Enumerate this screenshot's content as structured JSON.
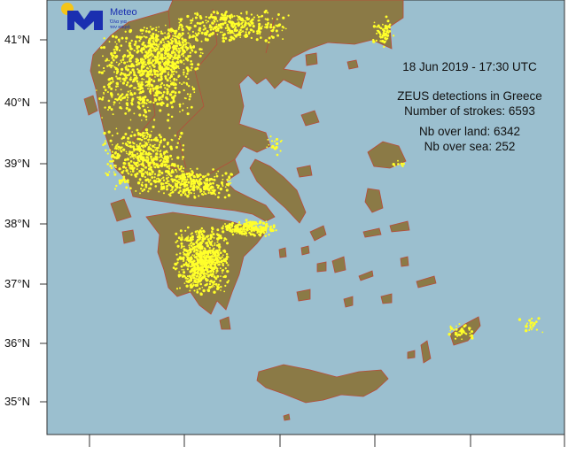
{
  "map": {
    "background_sea": "#9bbfcf",
    "land": "#8b7a46",
    "border": "#c04040",
    "strike_color": "#ffff2a",
    "lat_labels": [
      "41°N",
      "40°N",
      "39°N",
      "38°N",
      "37°N",
      "36°N",
      "35°N"
    ]
  },
  "logo": {
    "name": "Meteo",
    "tagline_1": "Όλα για",
    "tagline_2": "τον καιρό",
    "color": "#1a2fb0",
    "sun_color": "#f5c518"
  },
  "info": {
    "datetime": "18  Jun 2019 - 17:30 UTC",
    "title": "ZEUS detections in Greece",
    "strokes": "Number of strokes: 6593",
    "land": "Nb over land: 6342",
    "sea": "Nb over sea: 252"
  }
}
